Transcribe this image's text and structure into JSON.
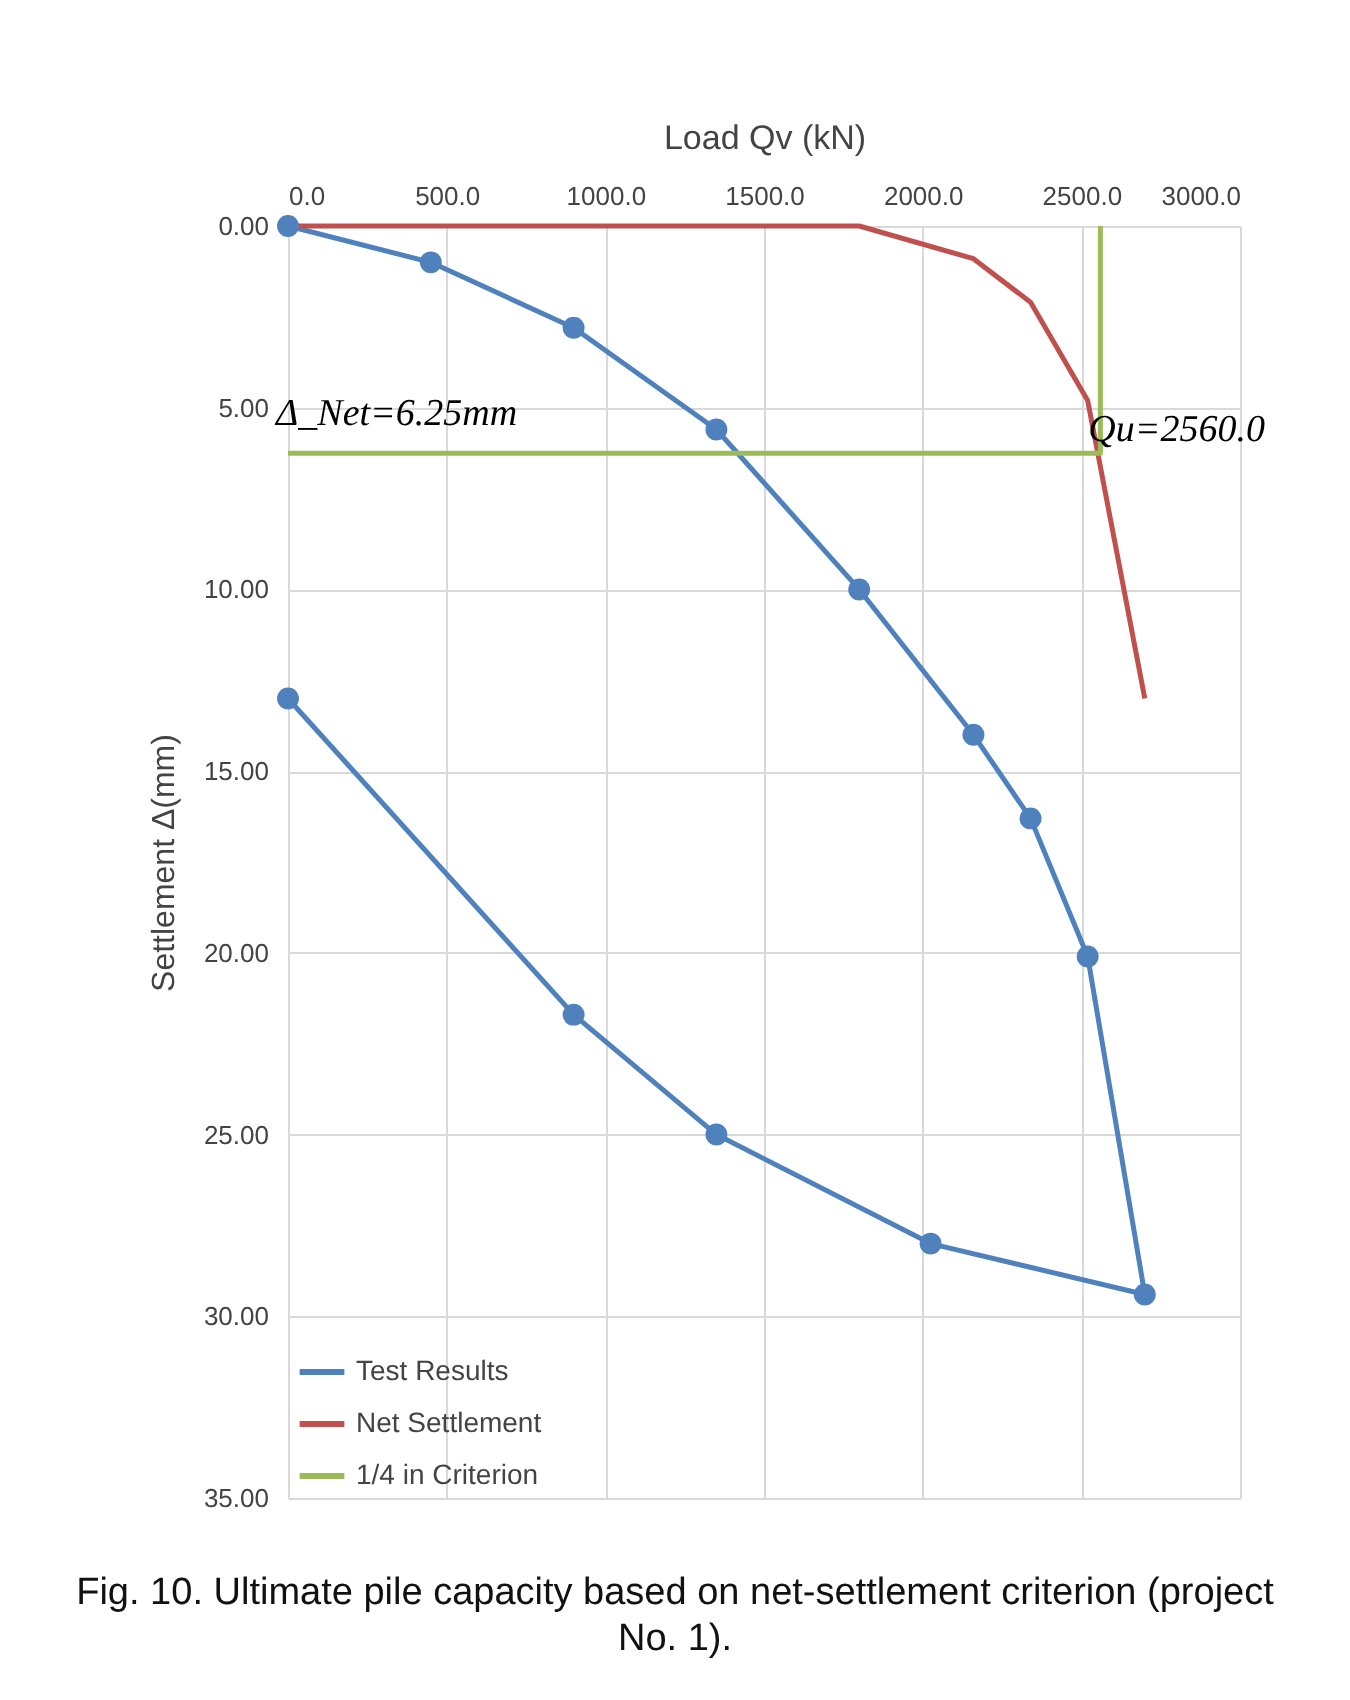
{
  "chart_data": {
    "type": "line",
    "xlabel": "Load Qv (kN)",
    "ylabel": "Settlement Δ(mm)",
    "xlim": [
      0,
      3000
    ],
    "xticks": [
      {
        "value": 0,
        "label": "0.0"
      },
      {
        "value": 500,
        "label": "500.0"
      },
      {
        "value": 1000,
        "label": "1000.0"
      },
      {
        "value": 1500,
        "label": "1500.0"
      },
      {
        "value": 2000,
        "label": "2000.0"
      },
      {
        "value": 2500,
        "label": "2500.0"
      },
      {
        "value": 3000,
        "label": "3000.0"
      }
    ],
    "ylim": [
      35,
      0
    ],
    "yticks": [
      {
        "value": 0,
        "label": "0.00"
      },
      {
        "value": 5,
        "label": "5.00"
      },
      {
        "value": 10,
        "label": "10.00"
      },
      {
        "value": 15,
        "label": "15.00"
      },
      {
        "value": 20,
        "label": "20.00"
      },
      {
        "value": 25,
        "label": "25.00"
      },
      {
        "value": 30,
        "label": "30.00"
      },
      {
        "value": 35,
        "label": "35.00"
      }
    ],
    "grid": true,
    "legend": "bottom left",
    "line_style": "solid",
    "series": [
      {
        "name": "Test Results",
        "color": "#4f81bd",
        "marker": "circle",
        "x": [
          0,
          450,
          900,
          1350,
          1800,
          2160,
          2340,
          2520,
          2700,
          2025,
          1350,
          900,
          0
        ],
        "values": [
          0,
          1,
          2.8,
          5.6,
          10,
          14,
          16.3,
          20.1,
          29.4,
          28,
          25,
          21.7,
          13
        ]
      },
      {
        "name": "Net Settlement",
        "color": "#c0504d",
        "marker": "none",
        "x": [
          0,
          1800,
          2160,
          2340,
          2520,
          2700
        ],
        "values": [
          0,
          0,
          0.9,
          2.1,
          4.8,
          13
        ]
      },
      {
        "name": "1/4 in Criterion",
        "color": "#9bbb59",
        "marker": "none",
        "x": [
          0,
          2560,
          2560
        ],
        "values": [
          6.25,
          6.25,
          0
        ]
      }
    ],
    "annotations": [
      {
        "text": "Δ_Net=6.25mm",
        "x": 0,
        "y": 6.25
      },
      {
        "text": "Qu=2560.0",
        "x": 2560,
        "y": 6.25
      },
      "Fig. 10. Ultimate pile capacity based on net-settlement criterion (project No. 1)."
    ]
  }
}
